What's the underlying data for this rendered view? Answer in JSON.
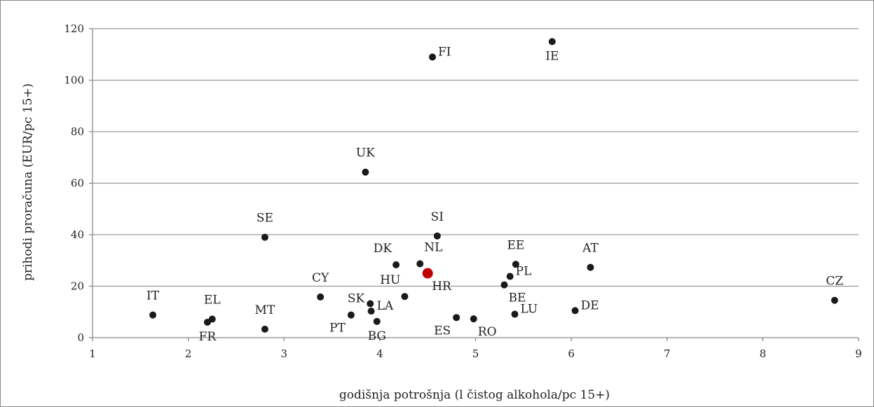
{
  "chart_data": {
    "type": "scatter",
    "title": "",
    "xlabel": "godišnja potrošnja (l čistog alkohola/pc 15+)",
    "ylabel": "prihodi proračuna (EUR/pc 15+)",
    "xlim": [
      1,
      9
    ],
    "ylim": [
      0,
      120
    ],
    "xticks": [
      "1",
      "2",
      "3",
      "4",
      "5",
      "6",
      "7",
      "8",
      "9"
    ],
    "yticks": [
      "0",
      "20",
      "40",
      "60",
      "80",
      "100",
      "120"
    ],
    "grid": "horizontal",
    "highlight_color": "#c00000",
    "point_color": "#1a1a1a",
    "points": [
      {
        "label": "FI",
        "x": 4.55,
        "y": 109,
        "anchor": "right"
      },
      {
        "label": "IE",
        "x": 5.8,
        "y": 115,
        "anchor": "below"
      },
      {
        "label": "UK",
        "x": 3.85,
        "y": 64.3,
        "anchor": "above"
      },
      {
        "label": "SE",
        "x": 2.8,
        "y": 39,
        "anchor": "above"
      },
      {
        "label": "SI",
        "x": 4.6,
        "y": 39.5,
        "anchor": "above"
      },
      {
        "label": "DK",
        "x": 4.17,
        "y": 28.3,
        "anchor": "above-left"
      },
      {
        "label": "NL",
        "x": 4.42,
        "y": 28.7,
        "anchor": "above-right"
      },
      {
        "label": "HR",
        "x": 4.5,
        "y": 25,
        "anchor": "below-right",
        "highlight": true
      },
      {
        "label": "EE",
        "x": 5.42,
        "y": 28.5,
        "anchor": "above"
      },
      {
        "label": "PL",
        "x": 5.36,
        "y": 23.8,
        "anchor": "right"
      },
      {
        "label": "BE",
        "x": 5.3,
        "y": 20.5,
        "anchor": "below-right"
      },
      {
        "label": "AT",
        "x": 6.2,
        "y": 27.3,
        "anchor": "above"
      },
      {
        "label": "CZ",
        "x": 8.75,
        "y": 14.5,
        "anchor": "above"
      },
      {
        "label": "CY",
        "x": 3.38,
        "y": 15.8,
        "anchor": "above"
      },
      {
        "label": "HU",
        "x": 4.26,
        "y": 16,
        "anchor": "above-left"
      },
      {
        "label": "SK",
        "x": 3.9,
        "y": 13.2,
        "anchor": "left"
      },
      {
        "label": "LA",
        "x": 3.91,
        "y": 10.3,
        "anchor": "right"
      },
      {
        "label": "IT",
        "x": 1.63,
        "y": 8.8,
        "anchor": "above"
      },
      {
        "label": "EL",
        "x": 2.25,
        "y": 7.2,
        "anchor": "above"
      },
      {
        "label": "FR",
        "x": 2.2,
        "y": 6,
        "anchor": "below"
      },
      {
        "label": "MT",
        "x": 2.8,
        "y": 3.3,
        "anchor": "above"
      },
      {
        "label": "PT",
        "x": 3.7,
        "y": 8.8,
        "anchor": "below-left"
      },
      {
        "label": "BG",
        "x": 3.97,
        "y": 6.3,
        "anchor": "below"
      },
      {
        "label": "ES",
        "x": 4.8,
        "y": 7.8,
        "anchor": "below-left"
      },
      {
        "label": "RO",
        "x": 4.98,
        "y": 7.3,
        "anchor": "below-right"
      },
      {
        "label": "LU",
        "x": 5.41,
        "y": 9.1,
        "anchor": "right"
      },
      {
        "label": "DE",
        "x": 6.04,
        "y": 10.5,
        "anchor": "right"
      }
    ]
  }
}
